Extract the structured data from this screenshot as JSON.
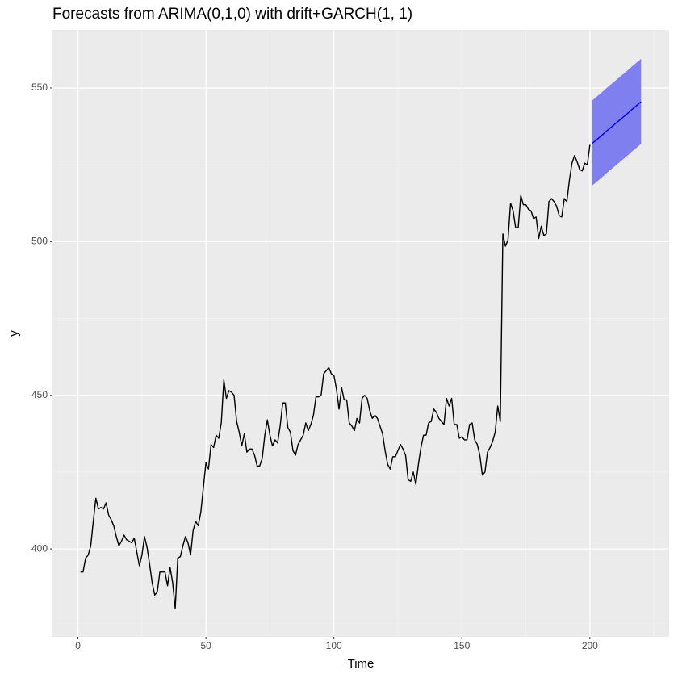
{
  "chart_data": {
    "type": "line",
    "title": "Forecasts from ARIMA(0,1,0) with drift+GARCH(1, 1)",
    "xlabel": "Time",
    "ylabel": "y",
    "xlim": [
      -9.95,
      230.95
    ],
    "ylim": [
      371.4,
      568.9
    ],
    "xticks": [
      0,
      50,
      100,
      150,
      200
    ],
    "yticks": [
      400,
      450,
      500,
      550
    ],
    "x_minor_grid": [
      25,
      75,
      125,
      175,
      225
    ],
    "y_minor_grid": [
      375,
      425,
      475,
      525
    ],
    "grid": true,
    "series": [
      {
        "color": "#000000",
        "x": [
          1,
          2,
          3,
          4,
          5,
          6,
          7,
          8,
          9,
          10,
          11,
          12,
          13,
          14,
          15,
          16,
          17,
          18,
          19,
          20,
          21,
          22,
          23,
          24,
          25,
          26,
          27,
          28,
          29,
          30,
          31,
          32,
          33,
          34,
          35,
          36,
          37,
          38,
          39,
          40,
          41,
          42,
          43,
          44,
          45,
          46,
          47,
          48,
          49,
          50,
          51,
          52,
          53,
          54,
          55,
          56,
          57,
          58,
          59,
          60,
          61,
          62,
          63,
          64,
          65,
          66,
          67,
          68,
          69,
          70,
          71,
          72,
          73,
          74,
          75,
          76,
          77,
          78,
          79,
          80,
          81,
          82,
          83,
          84,
          85,
          86,
          87,
          88,
          89,
          90,
          91,
          92,
          93,
          94,
          95,
          96,
          97,
          98,
          99,
          100,
          101,
          102,
          103,
          104,
          105,
          106,
          107,
          108,
          109,
          110,
          111,
          112,
          113,
          114,
          115,
          116,
          117,
          118,
          119,
          120,
          121,
          122,
          123,
          124,
          125,
          126,
          127,
          128,
          129,
          130,
          131,
          132,
          133,
          134,
          135,
          136,
          137,
          138,
          139,
          140,
          141,
          142,
          143,
          144,
          145,
          146,
          147,
          148,
          149,
          150,
          151,
          152,
          153,
          154,
          155,
          156,
          157,
          158,
          159,
          160,
          161,
          162,
          163,
          164,
          165,
          166,
          167,
          168,
          169,
          170,
          171,
          172,
          173,
          174,
          175,
          176,
          177,
          178,
          179,
          180,
          181,
          182,
          183,
          184,
          185,
          186,
          187,
          188,
          189,
          190,
          191,
          192,
          193,
          194,
          195,
          196,
          197,
          198,
          199,
          200
        ],
        "values": [
          392.5,
          392.5,
          397,
          398,
          401,
          409,
          416.5,
          413,
          413.5,
          413,
          415,
          411,
          409.5,
          407.5,
          404,
          401,
          402.5,
          404.5,
          403,
          402.5,
          402,
          403.5,
          399,
          394.5,
          398,
          404,
          400.5,
          395,
          389,
          385,
          386,
          392.5,
          392.5,
          392.5,
          388,
          394,
          389,
          380.6,
          397,
          397.5,
          401,
          404,
          402,
          398,
          406,
          409,
          407.5,
          412,
          420,
          428,
          426,
          434,
          433,
          437,
          436,
          441,
          455,
          449,
          451.5,
          451,
          450,
          441.5,
          438,
          433.5,
          437.5,
          431.5,
          432.5,
          432.5,
          430.5,
          427,
          427,
          429.5,
          437,
          442,
          437,
          433.5,
          435.5,
          434.5,
          440,
          447.5,
          447.5,
          439.5,
          438,
          432,
          430.5,
          434,
          435.5,
          437,
          441,
          438.5,
          440.5,
          443.5,
          449.5,
          449.5,
          450,
          457,
          458,
          459,
          457,
          456.5,
          452,
          445.5,
          452.5,
          448.5,
          448.5,
          441,
          440,
          438.5,
          442.5,
          441,
          449,
          450,
          449,
          445,
          442.5,
          443.5,
          442.5,
          440,
          437.5,
          432,
          427.5,
          426,
          430,
          430,
          432,
          434,
          432.5,
          430.5,
          422.5,
          422,
          425,
          421,
          427.5,
          433,
          437,
          437,
          441,
          441.5,
          445.5,
          444.5,
          442.5,
          441.5,
          440.5,
          449,
          446.5,
          449,
          440.5,
          440.5,
          436,
          436.5,
          435.5,
          435.5,
          440.5,
          441,
          435.5,
          434,
          430.5,
          424,
          425,
          431.5,
          433,
          435,
          438,
          446.5,
          441.5,
          502.5,
          498.5,
          500.5,
          512.5,
          510,
          504.5,
          504.5,
          515,
          512,
          512,
          510.5,
          510,
          507.5,
          508,
          501,
          505,
          502,
          502.5,
          513,
          514,
          513,
          511.5,
          508.5,
          508,
          514,
          513,
          520,
          525.5,
          528,
          526,
          523.5,
          523,
          525.5,
          525,
          531.5
        ]
      },
      {
        "color": "#0000ff",
        "x": [
          201,
          202,
          203,
          204,
          205,
          206,
          207,
          208,
          209,
          210,
          211,
          212,
          213,
          214,
          215,
          216,
          217,
          218,
          219,
          220
        ],
        "values": [
          532,
          532.7,
          533.4,
          534.1,
          534.8,
          535.6,
          536.3,
          537,
          537.7,
          538.4,
          539.1,
          539.8,
          540.5,
          541.2,
          541.9,
          542.7,
          543.4,
          544.1,
          544.8,
          545.5
        ]
      }
    ],
    "band": {
      "color": "#7f7ff0",
      "x": [
        201,
        202,
        203,
        204,
        205,
        206,
        207,
        208,
        209,
        210,
        211,
        212,
        213,
        214,
        215,
        216,
        217,
        218,
        219,
        220
      ],
      "lower": [
        518.3,
        519,
        519.7,
        520.4,
        521.1,
        521.9,
        522.6,
        523.3,
        524,
        524.7,
        525.4,
        526.1,
        526.8,
        527.5,
        528.2,
        529,
        529.7,
        530.4,
        531.1,
        531.8
      ],
      "upper": [
        546,
        546.7,
        547.4,
        548.1,
        548.8,
        549.6,
        550.3,
        551,
        551.7,
        552.4,
        553.1,
        553.8,
        554.5,
        555.2,
        555.9,
        556.7,
        557.4,
        558.1,
        558.8,
        559.5
      ]
    }
  }
}
